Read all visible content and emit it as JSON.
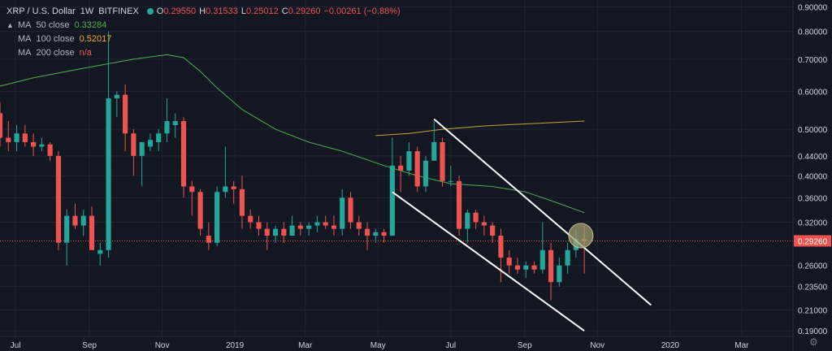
{
  "legend": {
    "symbol": "XRP / U.S. Dollar",
    "interval": "1W",
    "exchange": "BITFINEX",
    "open_label": "O",
    "open": "0.29550",
    "high_label": "H",
    "high": "0.31533",
    "low_label": "L",
    "low": "0.25012",
    "close_label": "C",
    "close": "0.29260",
    "change": "−0.00261 (−0.88%)",
    "chevron": "▲",
    "ma": [
      {
        "label": "MA",
        "name": "50 close",
        "value": "0.33284",
        "color": "#4caf50"
      },
      {
        "label": "MA",
        "name": "100 close",
        "value": "0.52017",
        "color": "#f9a825"
      },
      {
        "label": "MA",
        "name": "200 close",
        "value": "n/a",
        "color": "#ef5350"
      }
    ]
  },
  "colors": {
    "background": "#131722",
    "up": "#26a69a",
    "down": "#ef5350",
    "ma50": "#4caf50",
    "ma100": "#c8a23a",
    "channel": "#ffffff",
    "price_line": "#ef5350",
    "highlight_circle": "#9e9e72"
  },
  "chart_data": {
    "type": "candlestick",
    "y_scale": "log",
    "ylim": [
      0.185,
      0.93
    ],
    "xlim": [
      "2018-06-18",
      "2020-04-13"
    ],
    "y_ticks": [
      "0.90000",
      "0.80000",
      "0.70000",
      "0.60000",
      "0.50000",
      "0.44000",
      "0.40000",
      "0.36000",
      "0.32000",
      "0.29260",
      "0.26000",
      "0.23500",
      "0.21000",
      "0.19000"
    ],
    "x_ticks": [
      {
        "date": "2018-07-01",
        "label": "Jul"
      },
      {
        "date": "2018-09-01",
        "label": "Sep"
      },
      {
        "date": "2018-11-01",
        "label": "Nov"
      },
      {
        "date": "2019-01-01",
        "label": "2019"
      },
      {
        "date": "2019-03-01",
        "label": "Mar"
      },
      {
        "date": "2019-05-01",
        "label": "May"
      },
      {
        "date": "2019-07-01",
        "label": "Jul"
      },
      {
        "date": "2019-09-01",
        "label": "Sep"
      },
      {
        "date": "2019-11-01",
        "label": "Nov"
      },
      {
        "date": "2020-01-01",
        "label": "2020"
      },
      {
        "date": "2020-03-01",
        "label": "Mar"
      }
    ],
    "last_price": 0.2926,
    "candles": [
      {
        "date": "2018-06-18",
        "o": 0.54,
        "h": 0.57,
        "l": 0.46,
        "c": 0.48
      },
      {
        "date": "2018-06-25",
        "o": 0.48,
        "h": 0.52,
        "l": 0.45,
        "c": 0.47
      },
      {
        "date": "2018-07-02",
        "o": 0.47,
        "h": 0.51,
        "l": 0.45,
        "c": 0.49
      },
      {
        "date": "2018-07-09",
        "o": 0.49,
        "h": 0.51,
        "l": 0.46,
        "c": 0.47
      },
      {
        "date": "2018-07-16",
        "o": 0.47,
        "h": 0.49,
        "l": 0.44,
        "c": 0.46
      },
      {
        "date": "2018-07-23",
        "o": 0.46,
        "h": 0.48,
        "l": 0.45,
        "c": 0.465
      },
      {
        "date": "2018-07-30",
        "o": 0.465,
        "h": 0.47,
        "l": 0.43,
        "c": 0.44
      },
      {
        "date": "2018-08-06",
        "o": 0.44,
        "h": 0.45,
        "l": 0.28,
        "c": 0.29
      },
      {
        "date": "2018-08-13",
        "o": 0.29,
        "h": 0.34,
        "l": 0.26,
        "c": 0.33
      },
      {
        "date": "2018-08-20",
        "o": 0.33,
        "h": 0.35,
        "l": 0.31,
        "c": 0.315
      },
      {
        "date": "2018-08-27",
        "o": 0.315,
        "h": 0.34,
        "l": 0.3,
        "c": 0.33
      },
      {
        "date": "2018-09-03",
        "o": 0.33,
        "h": 0.345,
        "l": 0.28,
        "c": 0.28
      },
      {
        "date": "2018-09-10",
        "o": 0.275,
        "h": 0.29,
        "l": 0.26,
        "c": 0.28
      },
      {
        "date": "2018-09-17",
        "o": 0.28,
        "h": 0.8,
        "l": 0.27,
        "c": 0.58
      },
      {
        "date": "2018-09-24",
        "o": 0.58,
        "h": 0.6,
        "l": 0.53,
        "c": 0.59
      },
      {
        "date": "2018-10-01",
        "o": 0.59,
        "h": 0.62,
        "l": 0.45,
        "c": 0.49
      },
      {
        "date": "2018-10-08",
        "o": 0.49,
        "h": 0.5,
        "l": 0.4,
        "c": 0.44
      },
      {
        "date": "2018-10-15",
        "o": 0.44,
        "h": 0.47,
        "l": 0.38,
        "c": 0.47
      },
      {
        "date": "2018-10-22",
        "o": 0.46,
        "h": 0.49,
        "l": 0.45,
        "c": 0.475
      },
      {
        "date": "2018-10-29",
        "o": 0.47,
        "h": 0.5,
        "l": 0.45,
        "c": 0.49
      },
      {
        "date": "2018-11-05",
        "o": 0.49,
        "h": 0.58,
        "l": 0.47,
        "c": 0.52
      },
      {
        "date": "2018-11-12",
        "o": 0.51,
        "h": 0.54,
        "l": 0.48,
        "c": 0.52
      },
      {
        "date": "2018-11-19",
        "o": 0.52,
        "h": 0.53,
        "l": 0.36,
        "c": 0.38
      },
      {
        "date": "2018-11-26",
        "o": 0.38,
        "h": 0.39,
        "l": 0.33,
        "c": 0.37
      },
      {
        "date": "2018-12-03",
        "o": 0.37,
        "h": 0.375,
        "l": 0.3,
        "c": 0.31
      },
      {
        "date": "2018-12-10",
        "o": 0.3,
        "h": 0.32,
        "l": 0.28,
        "c": 0.29
      },
      {
        "date": "2018-12-17",
        "o": 0.29,
        "h": 0.38,
        "l": 0.285,
        "c": 0.37
      },
      {
        "date": "2018-12-24",
        "o": 0.37,
        "h": 0.46,
        "l": 0.36,
        "c": 0.38
      },
      {
        "date": "2018-12-31",
        "o": 0.38,
        "h": 0.39,
        "l": 0.35,
        "c": 0.375
      },
      {
        "date": "2019-01-07",
        "o": 0.375,
        "h": 0.4,
        "l": 0.31,
        "c": 0.33
      },
      {
        "date": "2019-01-14",
        "o": 0.33,
        "h": 0.34,
        "l": 0.31,
        "c": 0.32
      },
      {
        "date": "2019-01-21",
        "o": 0.32,
        "h": 0.33,
        "l": 0.3,
        "c": 0.31
      },
      {
        "date": "2019-01-28",
        "o": 0.31,
        "h": 0.32,
        "l": 0.28,
        "c": 0.3
      },
      {
        "date": "2019-02-04",
        "o": 0.3,
        "h": 0.315,
        "l": 0.29,
        "c": 0.31
      },
      {
        "date": "2019-02-11",
        "o": 0.31,
        "h": 0.32,
        "l": 0.29,
        "c": 0.3
      },
      {
        "date": "2019-02-18",
        "o": 0.3,
        "h": 0.33,
        "l": 0.3,
        "c": 0.315
      },
      {
        "date": "2019-02-25",
        "o": 0.315,
        "h": 0.32,
        "l": 0.3,
        "c": 0.31
      },
      {
        "date": "2019-03-04",
        "o": 0.31,
        "h": 0.32,
        "l": 0.3,
        "c": 0.315
      },
      {
        "date": "2019-03-11",
        "o": 0.315,
        "h": 0.33,
        "l": 0.305,
        "c": 0.32
      },
      {
        "date": "2019-03-18",
        "o": 0.32,
        "h": 0.33,
        "l": 0.31,
        "c": 0.315
      },
      {
        "date": "2019-03-25",
        "o": 0.315,
        "h": 0.33,
        "l": 0.3,
        "c": 0.31
      },
      {
        "date": "2019-04-01",
        "o": 0.31,
        "h": 0.375,
        "l": 0.3,
        "c": 0.36
      },
      {
        "date": "2019-04-08",
        "o": 0.36,
        "h": 0.37,
        "l": 0.31,
        "c": 0.32
      },
      {
        "date": "2019-04-15",
        "o": 0.32,
        "h": 0.33,
        "l": 0.3,
        "c": 0.31
      },
      {
        "date": "2019-04-22",
        "o": 0.31,
        "h": 0.32,
        "l": 0.28,
        "c": 0.3
      },
      {
        "date": "2019-04-29",
        "o": 0.3,
        "h": 0.31,
        "l": 0.29,
        "c": 0.305
      },
      {
        "date": "2019-05-06",
        "o": 0.305,
        "h": 0.31,
        "l": 0.29,
        "c": 0.3
      },
      {
        "date": "2019-05-13",
        "o": 0.3,
        "h": 0.48,
        "l": 0.3,
        "c": 0.42
      },
      {
        "date": "2019-05-20",
        "o": 0.42,
        "h": 0.44,
        "l": 0.37,
        "c": 0.41
      },
      {
        "date": "2019-05-27",
        "o": 0.41,
        "h": 0.47,
        "l": 0.4,
        "c": 0.45
      },
      {
        "date": "2019-06-03",
        "o": 0.45,
        "h": 0.46,
        "l": 0.37,
        "c": 0.38
      },
      {
        "date": "2019-06-10",
        "o": 0.38,
        "h": 0.44,
        "l": 0.37,
        "c": 0.43
      },
      {
        "date": "2019-06-17",
        "o": 0.43,
        "h": 0.52,
        "l": 0.43,
        "c": 0.47
      },
      {
        "date": "2019-06-24",
        "o": 0.47,
        "h": 0.48,
        "l": 0.38,
        "c": 0.39
      },
      {
        "date": "2019-07-01",
        "o": 0.39,
        "h": 0.42,
        "l": 0.38,
        "c": 0.39
      },
      {
        "date": "2019-07-08",
        "o": 0.39,
        "h": 0.4,
        "l": 0.3,
        "c": 0.31
      },
      {
        "date": "2019-07-15",
        "o": 0.31,
        "h": 0.34,
        "l": 0.29,
        "c": 0.335
      },
      {
        "date": "2019-07-22",
        "o": 0.335,
        "h": 0.34,
        "l": 0.31,
        "c": 0.32
      },
      {
        "date": "2019-07-29",
        "o": 0.32,
        "h": 0.33,
        "l": 0.3,
        "c": 0.315
      },
      {
        "date": "2019-08-05",
        "o": 0.315,
        "h": 0.32,
        "l": 0.29,
        "c": 0.3
      },
      {
        "date": "2019-08-12",
        "o": 0.3,
        "h": 0.31,
        "l": 0.24,
        "c": 0.27
      },
      {
        "date": "2019-08-19",
        "o": 0.27,
        "h": 0.28,
        "l": 0.25,
        "c": 0.26
      },
      {
        "date": "2019-08-26",
        "o": 0.26,
        "h": 0.27,
        "l": 0.25,
        "c": 0.255
      },
      {
        "date": "2019-09-02",
        "o": 0.255,
        "h": 0.265,
        "l": 0.245,
        "c": 0.26
      },
      {
        "date": "2019-09-09",
        "o": 0.26,
        "h": 0.265,
        "l": 0.25,
        "c": 0.255
      },
      {
        "date": "2019-09-16",
        "o": 0.255,
        "h": 0.32,
        "l": 0.25,
        "c": 0.28
      },
      {
        "date": "2019-09-23",
        "o": 0.28,
        "h": 0.29,
        "l": 0.22,
        "c": 0.24
      },
      {
        "date": "2019-09-30",
        "o": 0.24,
        "h": 0.27,
        "l": 0.235,
        "c": 0.26
      },
      {
        "date": "2019-10-07",
        "o": 0.26,
        "h": 0.29,
        "l": 0.25,
        "c": 0.28
      },
      {
        "date": "2019-10-14",
        "o": 0.28,
        "h": 0.31,
        "l": 0.27,
        "c": 0.295
      },
      {
        "date": "2019-10-21",
        "o": 0.2955,
        "h": 0.31533,
        "l": 0.25012,
        "c": 0.2926
      }
    ],
    "moving_averages": [
      {
        "name": "MA 50 close",
        "points": [
          [
            "2018-06-18",
            0.615
          ],
          [
            "2018-07-16",
            0.64
          ],
          [
            "2018-08-13",
            0.66
          ],
          [
            "2018-09-10",
            0.68
          ],
          [
            "2018-10-08",
            0.7
          ],
          [
            "2018-11-05",
            0.715
          ],
          [
            "2018-11-19",
            0.705
          ],
          [
            "2018-12-03",
            0.66
          ],
          [
            "2018-12-17",
            0.61
          ],
          [
            "2019-01-07",
            0.55
          ],
          [
            "2019-02-04",
            0.5
          ],
          [
            "2019-03-04",
            0.47
          ],
          [
            "2019-04-01",
            0.45
          ],
          [
            "2019-05-06",
            0.42
          ],
          [
            "2019-06-03",
            0.4
          ],
          [
            "2019-07-01",
            0.385
          ],
          [
            "2019-08-05",
            0.38
          ],
          [
            "2019-09-02",
            0.37
          ],
          [
            "2019-09-30",
            0.35
          ],
          [
            "2019-10-21",
            0.335
          ]
        ]
      },
      {
        "name": "MA 100 close",
        "points": [
          [
            "2019-04-29",
            0.485
          ],
          [
            "2019-05-27",
            0.49
          ],
          [
            "2019-06-24",
            0.5
          ],
          [
            "2019-07-29",
            0.508
          ],
          [
            "2019-08-26",
            0.512
          ],
          [
            "2019-09-23",
            0.516
          ],
          [
            "2019-10-21",
            0.52
          ]
        ]
      }
    ],
    "trend_lines": [
      {
        "name": "channel-upper",
        "from": [
          "2019-06-17",
          0.525
        ],
        "to": [
          "2019-12-16",
          0.215
        ]
      },
      {
        "name": "channel-lower",
        "from": [
          "2019-05-13",
          0.37
        ],
        "to": [
          "2019-10-21",
          0.19
        ]
      }
    ],
    "highlight": {
      "date": "2019-10-14",
      "price": 0.3
    }
  }
}
